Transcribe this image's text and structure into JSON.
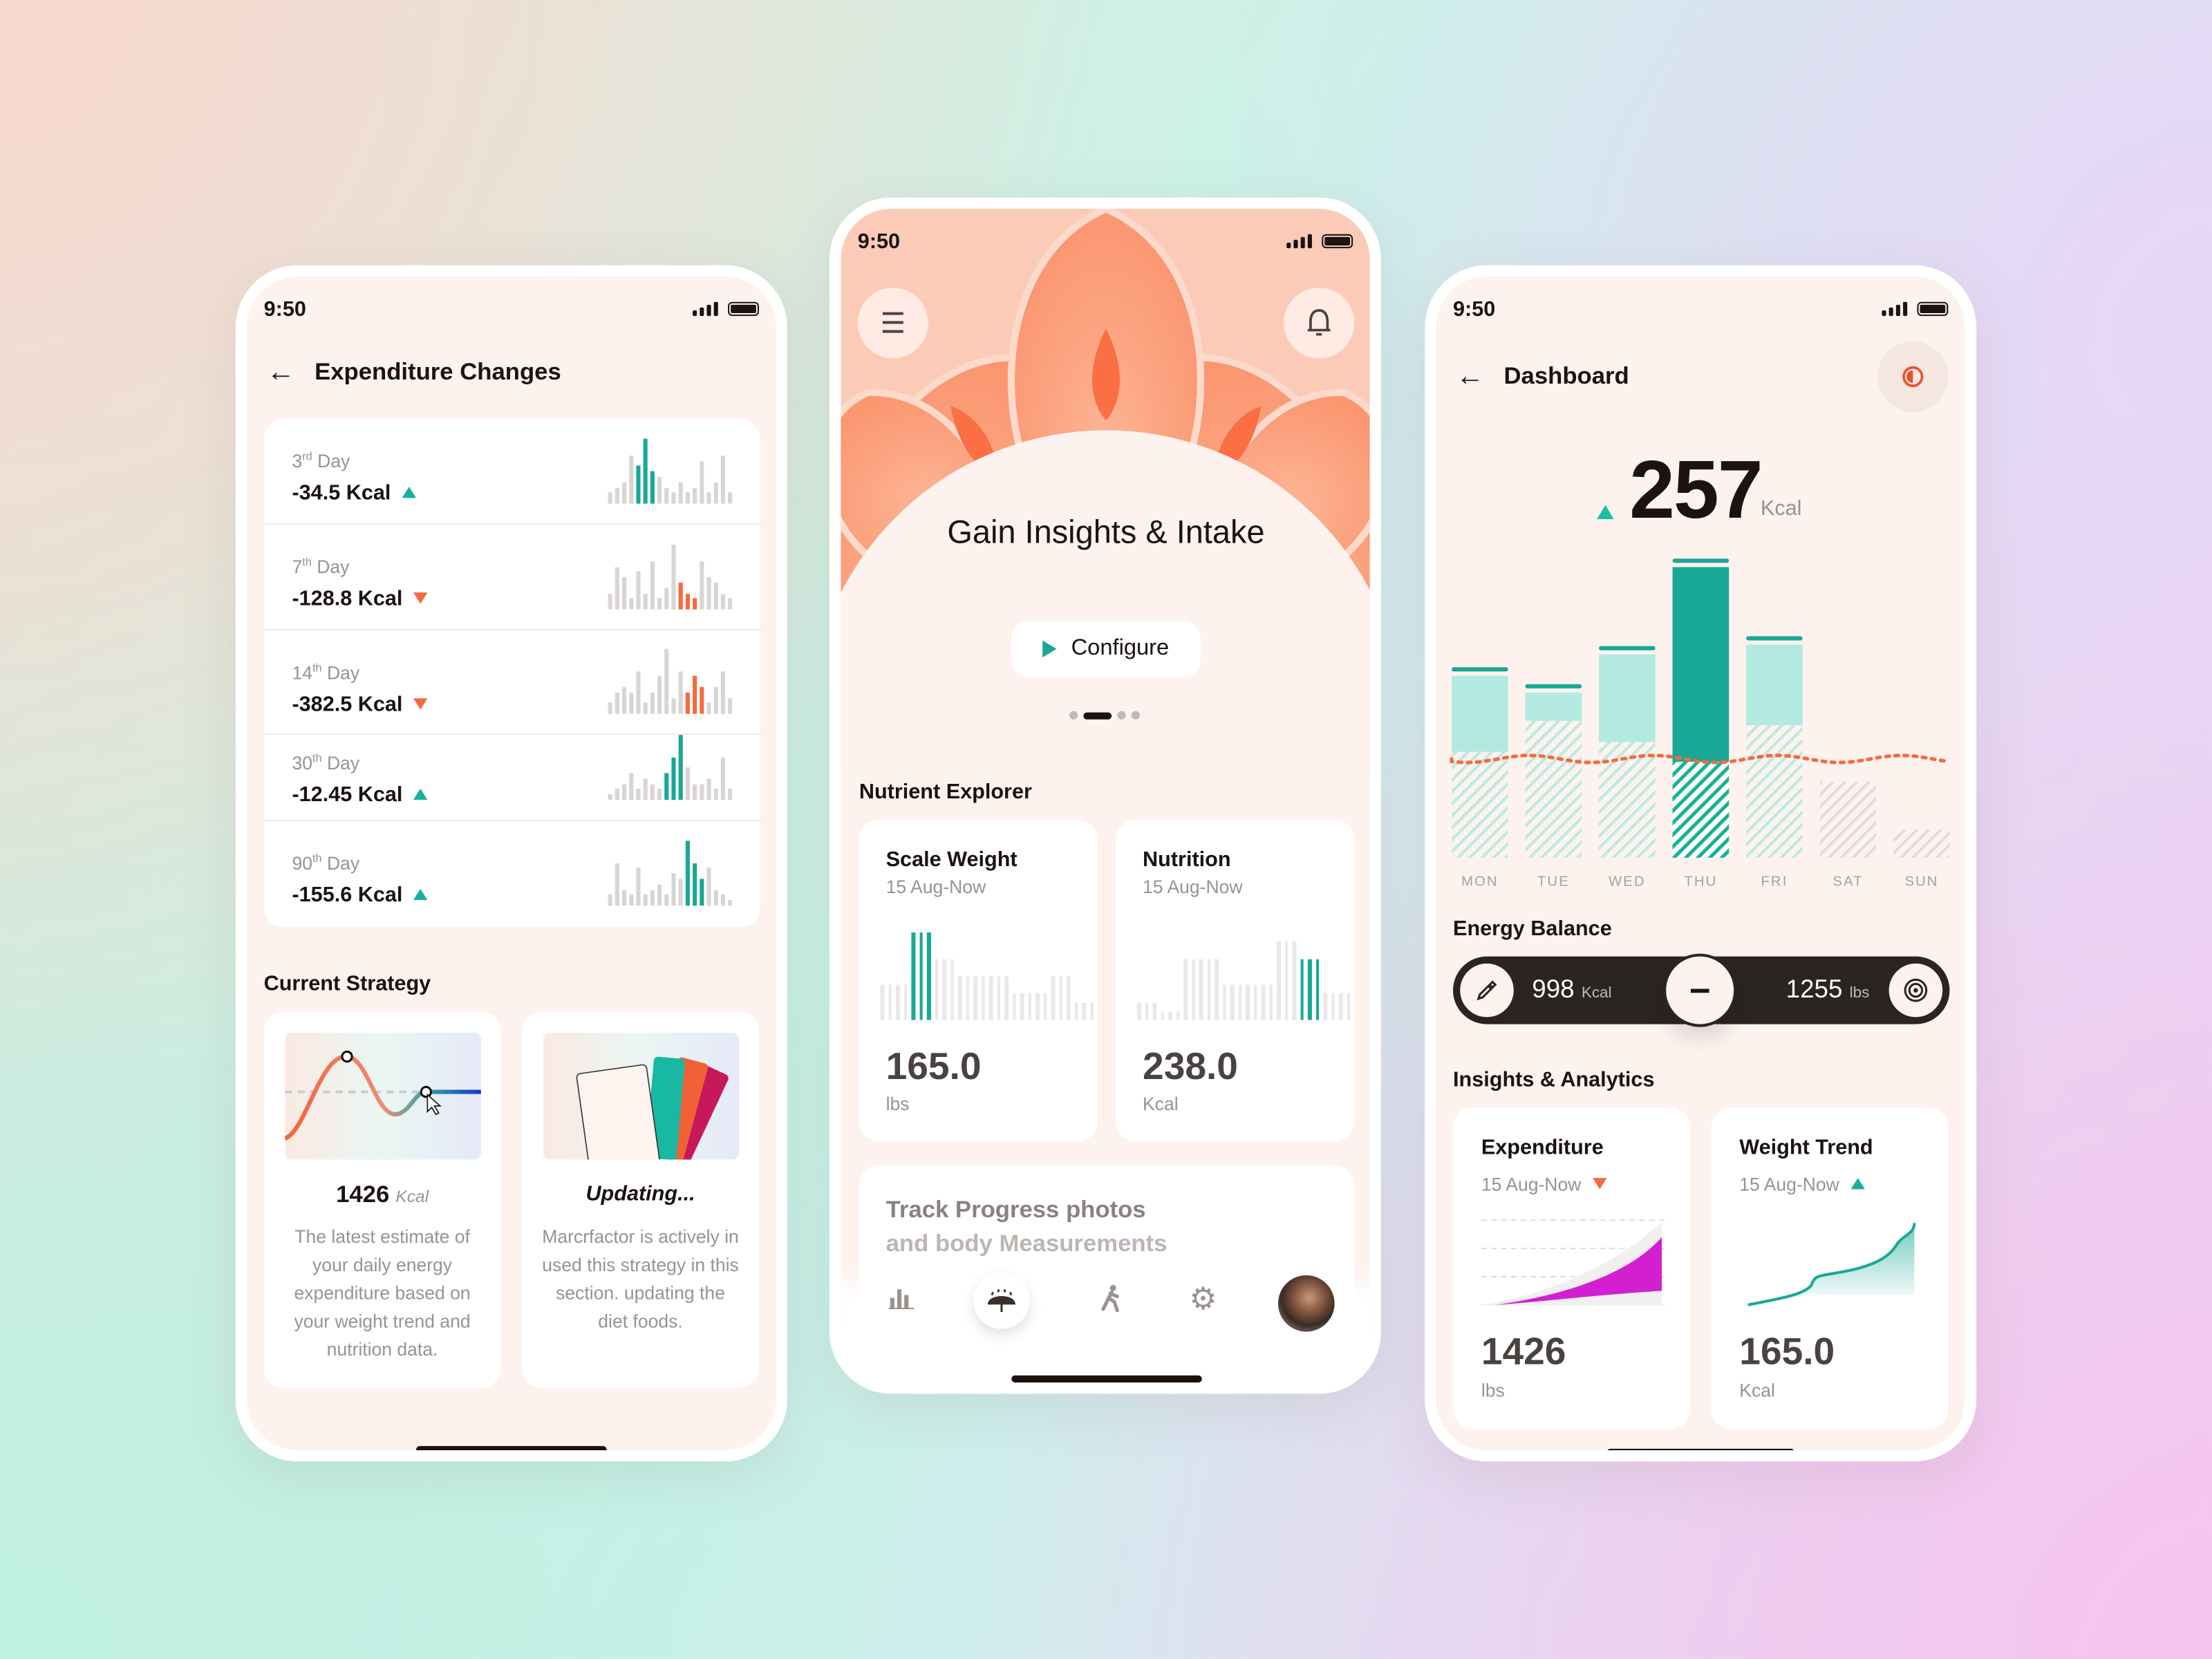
{
  "status": {
    "time": "9:50"
  },
  "colors": {
    "teal": "#19a896",
    "orange": "#f56a3f",
    "magenta": "#d21fd0",
    "dark": "#2a2523",
    "screen": "#fdf2ee"
  },
  "left": {
    "title": "Expenditure Changes",
    "rows": [
      {
        "day": "3",
        "suffix": "rd",
        "day_word": "Day",
        "value": "-34.5 Kcal",
        "trend": "up",
        "bars": [
          2,
          3,
          4,
          9,
          7,
          12,
          6,
          5,
          3,
          2,
          4,
          2,
          3,
          8,
          2,
          4,
          9,
          2
        ],
        "highlight": [
          4,
          5,
          6
        ],
        "hcolor": "#19a896"
      },
      {
        "day": "7",
        "suffix": "th",
        "day_word": "Day",
        "value": "-128.8 Kcal",
        "trend": "down",
        "bars": [
          3,
          8,
          6,
          2,
          7,
          3,
          9,
          2,
          4,
          12,
          5,
          3,
          2,
          9,
          6,
          5,
          3,
          2
        ],
        "highlight": [
          10,
          11,
          12
        ],
        "hcolor": "#f56a3f"
      },
      {
        "day": "14",
        "suffix": "th",
        "day_word": "Day",
        "value": "-382.5 Kcal",
        "trend": "down",
        "bars": [
          2,
          4,
          5,
          4,
          8,
          2,
          4,
          7,
          12,
          3,
          8,
          4,
          7,
          5,
          2,
          5,
          8,
          3
        ],
        "highlight": [
          11,
          12,
          13
        ],
        "hcolor": "#f56a3f"
      },
      {
        "day": "30",
        "suffix": "th",
        "day_word": "Day",
        "value": "-12.45 Kcal",
        "trend": "up",
        "bars": [
          1,
          2,
          3,
          5,
          2,
          4,
          3,
          2,
          5,
          8,
          12,
          6,
          3,
          3,
          4,
          2,
          8,
          2
        ],
        "highlight": [
          8,
          9,
          10
        ],
        "hcolor": "#19a896"
      },
      {
        "day": "90",
        "suffix": "th",
        "day_word": "Day",
        "value": "-155.6 Kcal",
        "trend": "up",
        "bars": [
          2,
          8,
          3,
          2,
          7,
          2,
          3,
          4,
          2,
          6,
          5,
          12,
          8,
          5,
          7,
          3,
          2,
          1
        ],
        "highlight": [
          11,
          12,
          13
        ],
        "hcolor": "#19a896"
      }
    ],
    "strategy_title": "Current Strategy",
    "card1": {
      "value": "1426",
      "unit": "Kcal",
      "text": "The latest estimate of your daily energy expenditure based on your weight trend and nutrition data."
    },
    "card2": {
      "title": "Updating...",
      "text": "Marcrfactor is actively in used this strategy in this section. updating the diet foods."
    }
  },
  "middle": {
    "hero_title": "Gain Insights & Intake",
    "configure": "Configure",
    "pager": {
      "count": 4,
      "active": 1
    },
    "section": "Nutrient Explorer",
    "cards": [
      {
        "title": "Scale Weight",
        "range": "15 Aug-Now",
        "value": "165.0",
        "unit": "lbs",
        "bars": [
          4,
          4,
          4,
          4,
          10,
          10,
          10,
          7,
          7,
          7,
          5,
          5,
          5,
          5,
          5,
          5,
          5,
          3,
          3,
          3,
          3,
          3,
          5,
          5,
          5,
          2,
          2,
          2
        ],
        "highlight": [
          4,
          5,
          6
        ]
      },
      {
        "title": "Nutrition",
        "range": "15 Aug-Now",
        "value": "238.0",
        "unit": "Kcal",
        "bars": [
          2,
          2,
          2,
          1,
          1,
          1,
          7,
          7,
          7,
          7,
          7,
          4,
          4,
          4,
          4,
          4,
          4,
          4,
          9,
          9,
          9,
          7,
          7,
          7,
          3,
          3,
          3,
          3
        ],
        "highlight": [
          21,
          22,
          23
        ]
      }
    ],
    "track": {
      "line1": "Track Progress photos",
      "line2": "and body Measurements"
    },
    "nav": [
      {
        "icon": "bar-chart-icon"
      },
      {
        "icon": "umbrella-icon",
        "active": true
      },
      {
        "icon": "walking-icon"
      },
      {
        "icon": "gear-icon"
      },
      {
        "icon": "avatar"
      }
    ]
  },
  "right": {
    "title": "Dashboard",
    "total": "257",
    "total_unit": "Kcal",
    "trend": "up",
    "balance_title": "Energy Balance",
    "intake": "998",
    "intake_unit": "Kcal",
    "operator": "−",
    "target": "1255",
    "target_unit": "lbs",
    "insights_title": "Insights & Analytics",
    "cards": [
      {
        "title": "Expenditure",
        "range": "15 Aug-Now",
        "trend": "down",
        "value": "1426",
        "unit": "lbs"
      },
      {
        "title": "Weight Trend",
        "range": "15 Aug-Now",
        "trend": "up",
        "value": "165.0",
        "unit": "Kcal"
      }
    ]
  },
  "chart_data": {
    "type": "bar",
    "categories": [
      "MON",
      "TUE",
      "WED",
      "THU",
      "FRI",
      "SAT",
      "SUN"
    ],
    "series": [
      {
        "values": [
          135,
          123,
          150,
          212,
          157,
          0,
          0
        ]
      },
      {
        "values": [
          75,
          97,
          82,
          68,
          94,
          54,
          20
        ]
      }
    ],
    "highlight": "THU",
    "reference_line": "dotted",
    "grid": false
  }
}
